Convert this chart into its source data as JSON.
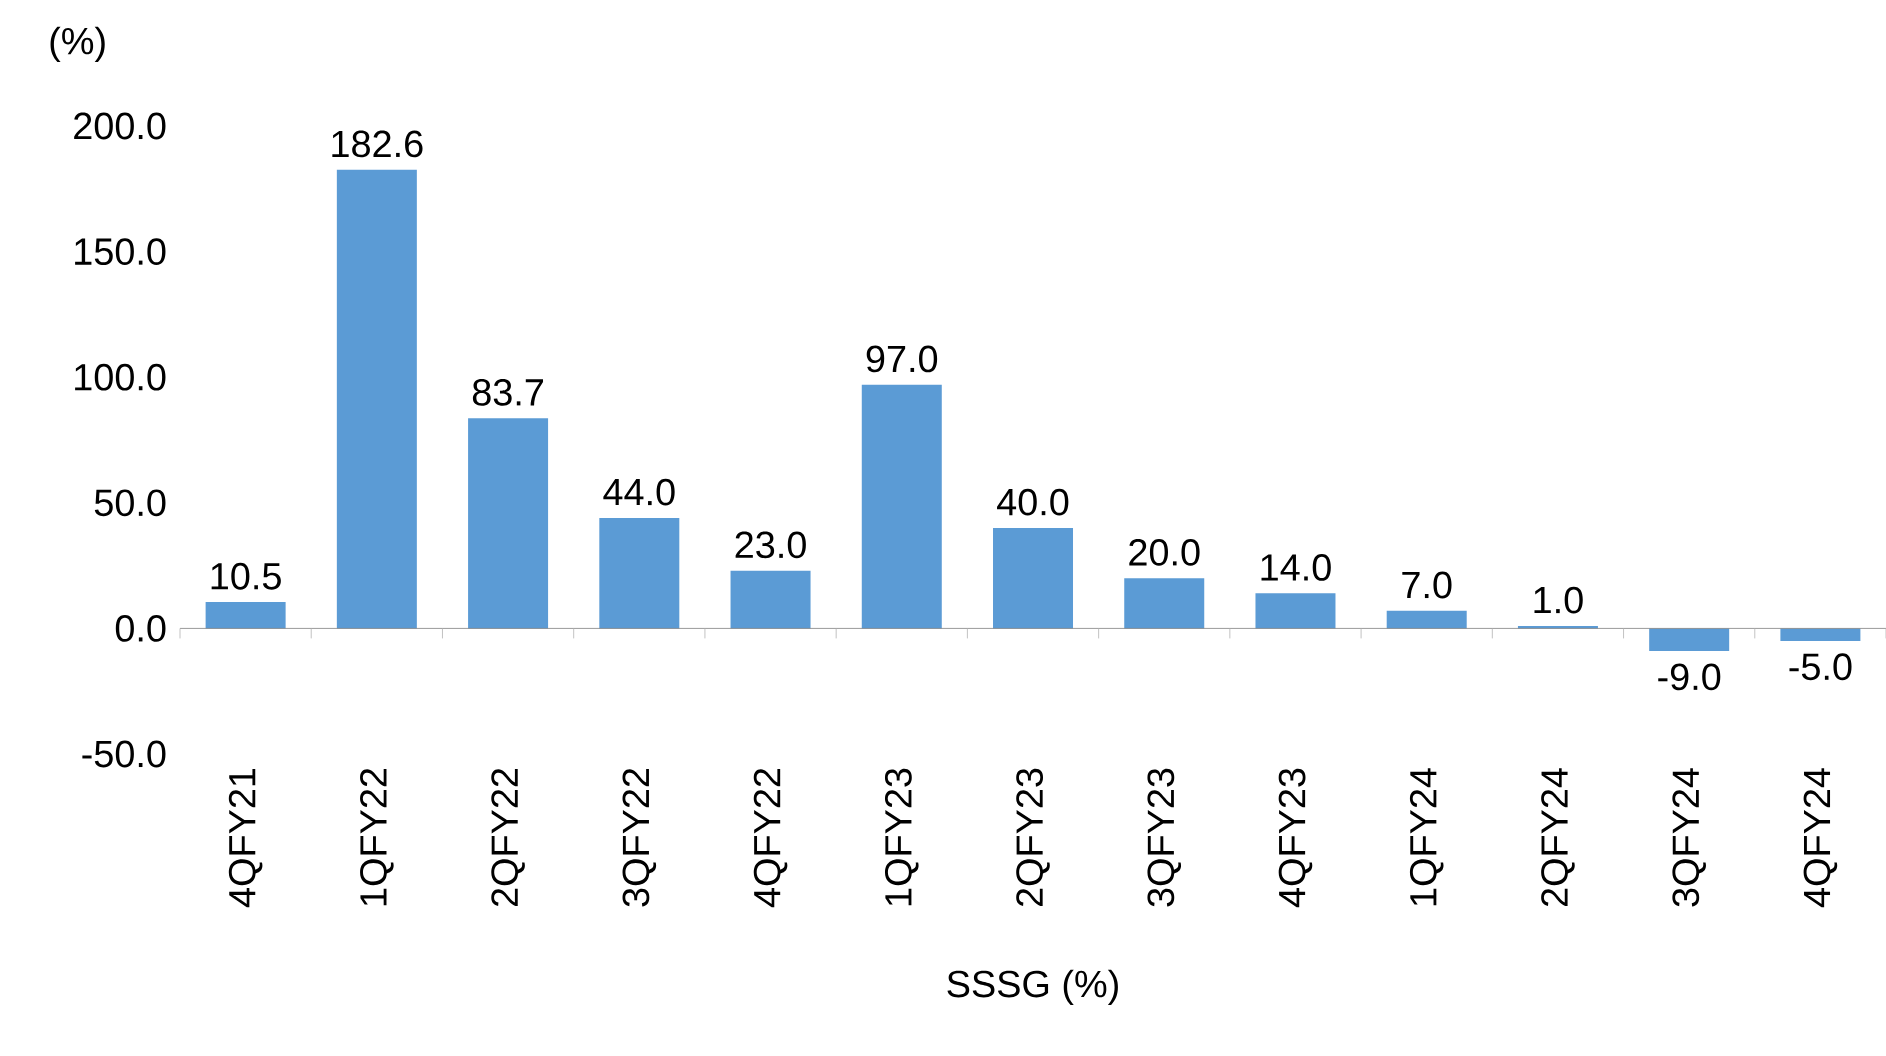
{
  "chart_data": {
    "type": "bar",
    "ylabel": "(%)",
    "xlabel": "SSSG (%)",
    "categories": [
      "4QFY21",
      "1QFY22",
      "2QFY22",
      "3QFY22",
      "4QFY22",
      "1QFY23",
      "2QFY23",
      "3QFY23",
      "4QFY23",
      "1QFY24",
      "2QFY24",
      "3QFY24",
      "4QFY24"
    ],
    "values": [
      10.5,
      182.6,
      83.7,
      44.0,
      23.0,
      97.0,
      40.0,
      20.0,
      14.0,
      7.0,
      1.0,
      -9.0,
      -5.0
    ],
    "value_labels": [
      "10.5",
      "182.6",
      "83.7",
      "44.0",
      "23.0",
      "97.0",
      "40.0",
      "20.0",
      "14.0",
      "7.0",
      "1.0",
      "-9.0",
      "-5.0"
    ],
    "color": "#5b9bd5",
    "ylim": [
      -50,
      200
    ],
    "yticks": [
      {
        "value": -50,
        "label": "-50.0"
      },
      {
        "value": 0,
        "label": "0.0"
      },
      {
        "value": 50,
        "label": "50.0"
      },
      {
        "value": 100,
        "label": "100.0"
      },
      {
        "value": 150,
        "label": "150.0"
      },
      {
        "value": 200,
        "label": "200.0"
      }
    ],
    "ref_lines": [
      {
        "axis": "y",
        "value": 0,
        "color": "#808080"
      }
    ]
  }
}
